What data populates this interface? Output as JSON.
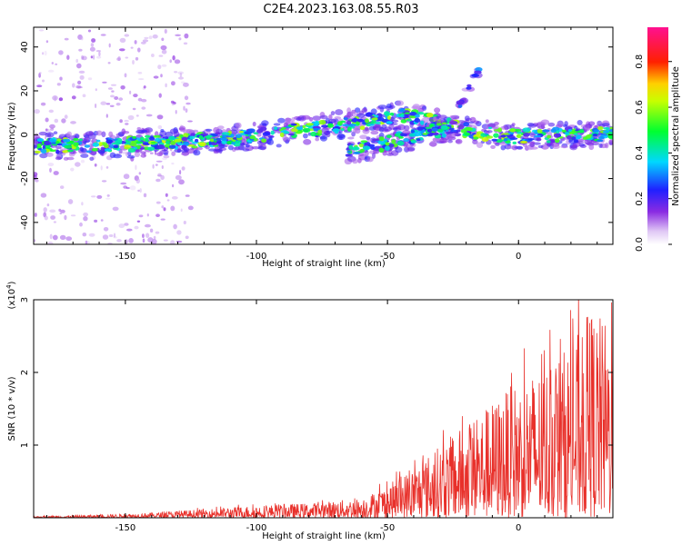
{
  "title": "C2E4.2023.163.08.55.R03",
  "chart_data": [
    {
      "type": "heatmap",
      "xlabel": "Height of straight line (km)",
      "ylabel": "Frequency (Hz)",
      "xlim": [
        -185,
        36
      ],
      "ylim": [
        -50,
        49
      ],
      "xticks": [
        -150,
        -100,
        -50,
        0
      ],
      "yticks": [
        -40,
        -20,
        0,
        20,
        40
      ],
      "colorbar": {
        "label": "Normalized spectral amplitude",
        "range": [
          0,
          0.95
        ],
        "ticks": [
          0.0,
          0.2,
          0.4,
          0.6,
          0.8
        ]
      },
      "ridges": [
        {
          "points": [
            [
              -185,
              -5
            ],
            [
              -160,
              -5
            ],
            [
              -130,
              -3
            ],
            [
              -110,
              -2
            ],
            [
              -90,
              1
            ],
            [
              -70,
              4
            ],
            [
              -55,
              7
            ],
            [
              -45,
              9
            ],
            [
              -40,
              8
            ],
            [
              -30,
              5
            ],
            [
              -20,
              2
            ],
            [
              -10,
              0
            ],
            [
              0,
              -1
            ],
            [
              15,
              0
            ],
            [
              36,
              0
            ]
          ],
          "level": 0.55
        },
        {
          "points": [
            [
              -65,
              -7
            ],
            [
              -55,
              -5
            ],
            [
              -45,
              -2
            ],
            [
              -35,
              1
            ],
            [
              -25,
              3
            ]
          ],
          "level": 0.5
        },
        {
          "points": [
            [
              -25,
              8
            ],
            [
              -15,
              30
            ]
          ],
          "level": 0.2
        }
      ]
    },
    {
      "type": "line",
      "xlabel": "Height of straight line (km)",
      "ylabel": "SNR (10 * v/v)",
      "yscale_label": "(x10",
      "yscale_exp": "4",
      "yscale_close": ")",
      "xlim": [
        -185,
        36
      ],
      "ylim": [
        0,
        3
      ],
      "xticks": [
        -150,
        -100,
        -50,
        0
      ],
      "yticks": [
        1,
        2,
        3
      ],
      "color": "#e8302a",
      "envelope": [
        [
          -185,
          0.02
        ],
        [
          -160,
          0.04
        ],
        [
          -140,
          0.07
        ],
        [
          -120,
          0.12
        ],
        [
          -100,
          0.17
        ],
        [
          -80,
          0.2
        ],
        [
          -60,
          0.27
        ],
        [
          -50,
          0.45
        ],
        [
          -40,
          0.7
        ],
        [
          -30,
          1.0
        ],
        [
          -20,
          1.3
        ],
        [
          -10,
          1.6
        ],
        [
          0,
          1.9
        ],
        [
          10,
          2.1
        ],
        [
          20,
          2.4
        ],
        [
          28,
          2.9
        ],
        [
          36,
          2.6
        ]
      ]
    }
  ]
}
